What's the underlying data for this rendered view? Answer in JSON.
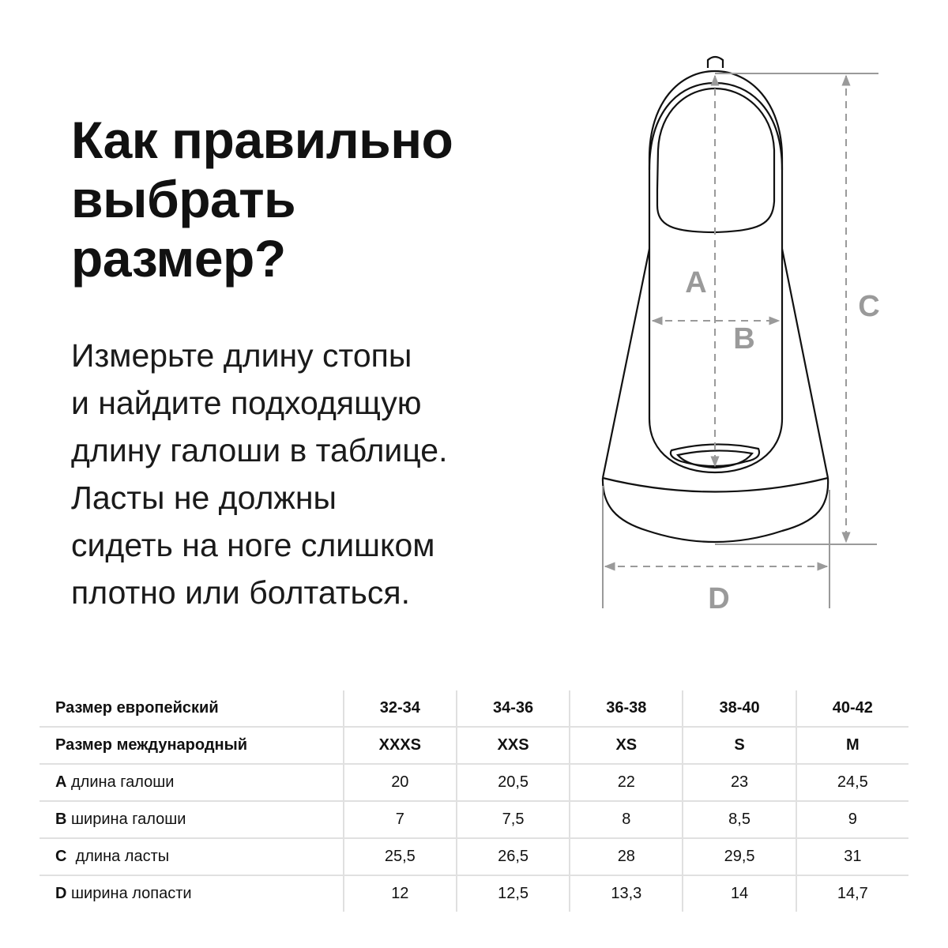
{
  "title": [
    "Как правильно",
    "выбрать",
    "размер?"
  ],
  "description": [
    "Измерьте длину стопы",
    "и найдите подходящую",
    "длину галоши в таблице.",
    "Ласты не должны",
    "сидеть на ноге слишком",
    "плотно или болтаться."
  ],
  "diagram": {
    "labels": {
      "a": "A",
      "b": "B",
      "c": "C",
      "d": "D"
    },
    "dimension_color": "#9a9a9a"
  },
  "table": {
    "rows": [
      {
        "letter": "",
        "label": "Размер европейский",
        "values": [
          "32-34",
          "34-36",
          "36-38",
          "38-40",
          "40-42"
        ]
      },
      {
        "letter": "",
        "label": "Размер международный",
        "values": [
          "XXXS",
          "XXS",
          "XS",
          "S",
          "M"
        ]
      },
      {
        "letter": "A",
        "label": " длина галоши",
        "values": [
          "20",
          "20,5",
          "22",
          "23",
          "24,5"
        ]
      },
      {
        "letter": "B",
        "label": " ширина галоши",
        "values": [
          "7",
          "7,5",
          "8",
          "8,5",
          "9"
        ]
      },
      {
        "letter": "C",
        "label": "  длина ласты",
        "values": [
          "25,5",
          "26,5",
          "28",
          "29,5",
          "31"
        ]
      },
      {
        "letter": "D",
        "label": " ширина лопасти",
        "values": [
          "12",
          "12,5",
          "13,3",
          "14",
          "14,7"
        ]
      }
    ]
  }
}
